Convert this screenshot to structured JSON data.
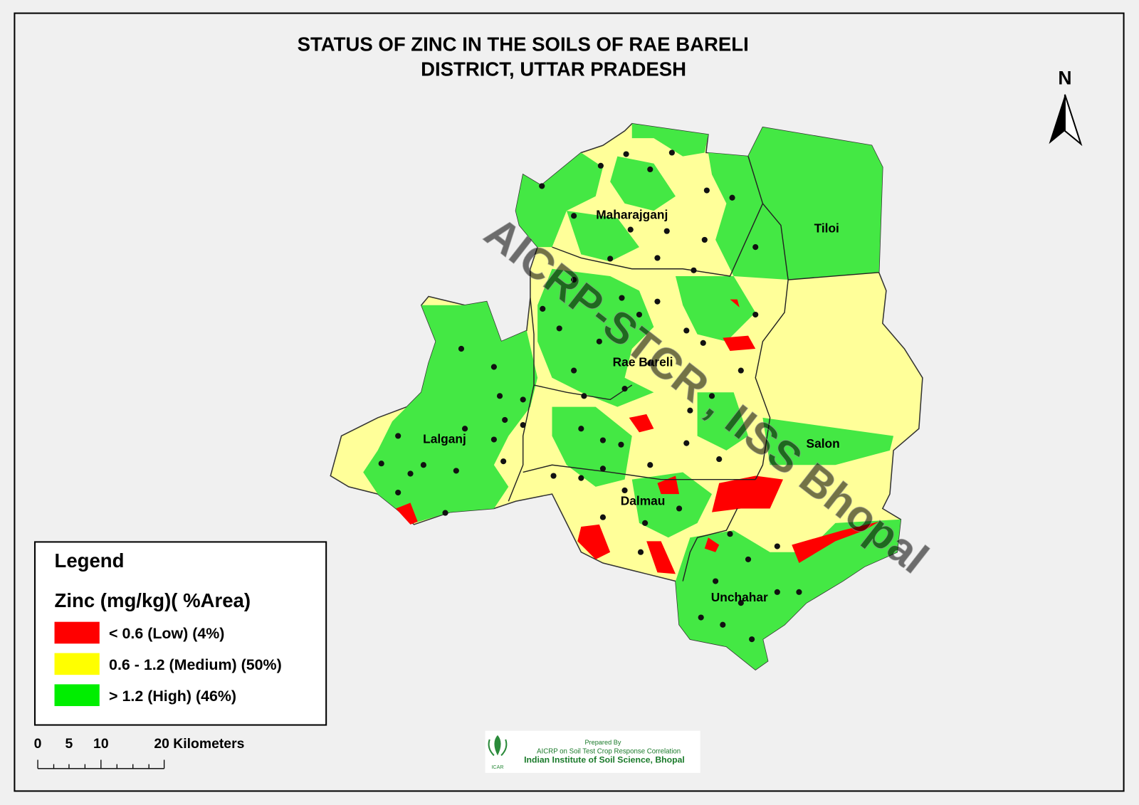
{
  "title": {
    "line1": "STATUS OF ZINC  IN THE SOILS OF RAE BARELI",
    "line2": "DISTRICT, UTTAR PRADESH"
  },
  "north": "N",
  "blocks": [
    "Maharajganj",
    "Tiloi",
    "Rae Bareli",
    "Lalganj",
    "Salon",
    "Dalmau",
    "Unchahar"
  ],
  "legend": {
    "heading": "Legend",
    "subtitle": "Zinc  (mg/kg)( %Area)",
    "items": [
      {
        "label": "< 0.6 (Low) (4%)",
        "color": "#ff0000"
      },
      {
        "label": "0.6 - 1.2 (Medium) (50%)",
        "color": "#ffff00"
      },
      {
        "label": "> 1.2 (High) (46%)",
        "color": "#00ee00"
      }
    ]
  },
  "scale": {
    "labels": [
      "0",
      "5",
      "10",
      "20 Kilometers"
    ]
  },
  "watermark": "AICRP-STCR , IISS Bhopal",
  "credit": {
    "line1": "Prepared By",
    "line2": "AICRP on Soil Test Crop Response Correlation",
    "line3": "Indian Institute of Soil Science, Bhopal",
    "logo": "ICAR"
  }
}
